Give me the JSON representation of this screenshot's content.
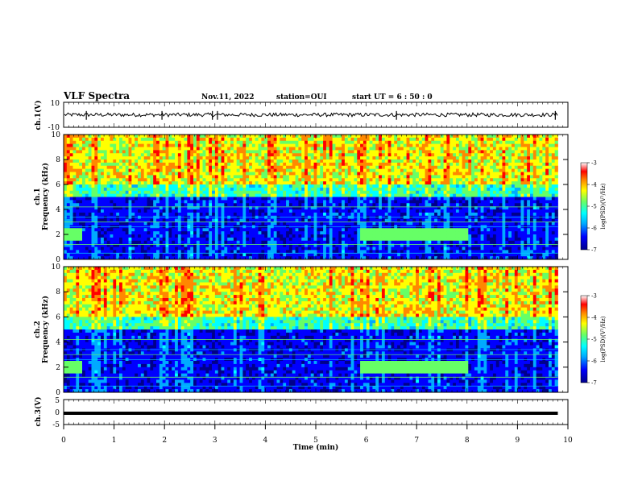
{
  "header": {
    "title": "VLF Spectra",
    "date": "Nov.11, 2022",
    "station": "station=OUI",
    "start": "start UT =  6 : 50 : 0"
  },
  "colors": {
    "spectrum_scale": [
      "#00008a",
      "#0000ff",
      "#00aaff",
      "#00ffff",
      "#66ff66",
      "#ffff00",
      "#ff8800",
      "#ff0000",
      "#ffffff"
    ],
    "waveform": "#000000"
  },
  "chart_data": [
    {
      "type": "line",
      "name_key": "ch1-waveform",
      "ylabel": "ch.1(V)",
      "ylim": [
        -10,
        10
      ],
      "yticks": [
        "10",
        "-10"
      ],
      "xlim": [
        0,
        10
      ],
      "baseline": 0,
      "amplitude_typical": 1.5,
      "spikes_min": [
        0.45,
        1.95,
        2.95,
        3.05,
        6.6,
        9.75
      ]
    },
    {
      "type": "heatmap",
      "name_key": "ch1-spectrogram",
      "ylabel": "Frequency (kHz)",
      "channel_label": "ch.1",
      "ylim": [
        0,
        10
      ],
      "yticks": [
        "0",
        "2",
        "4",
        "6",
        "8",
        "10"
      ],
      "xlim": [
        0,
        9.8
      ],
      "colorbar": {
        "label": "log(PSD)(V²/Hz)",
        "range": [
          -7,
          -3
        ],
        "ticks": [
          "-3",
          "-4",
          "-5",
          "-6",
          "-7"
        ]
      },
      "whistler_band": {
        "start_min": 5.9,
        "end_min": 8.0,
        "freq_khz": 2.0
      },
      "sferic_band_khz": [
        6,
        10
      ]
    },
    {
      "type": "heatmap",
      "name_key": "ch2-spectrogram",
      "ylabel": "Frequency (kHz)",
      "channel_label": "ch.2",
      "ylim": [
        0,
        10
      ],
      "yticks": [
        "0",
        "2",
        "4",
        "6",
        "8",
        "10"
      ],
      "xlim": [
        0,
        9.8
      ],
      "colorbar": {
        "label": "log(PSD)(V²/Hz)",
        "range": [
          -7,
          -3
        ],
        "ticks": [
          "-3",
          "-4",
          "-5",
          "-6",
          "-7"
        ]
      },
      "whistler_band": {
        "start_min": 5.9,
        "end_min": 8.0,
        "freq_khz": 2.0
      },
      "sferic_band_khz": [
        6,
        10
      ]
    },
    {
      "type": "line",
      "name_key": "ch3-waveform",
      "ylabel": "ch.3(V)",
      "ylim": [
        -5,
        5
      ],
      "yticks": [
        "5",
        "0",
        "-5"
      ],
      "xlim": [
        0,
        9.8
      ],
      "constant_value": -0.5
    }
  ],
  "xaxis": {
    "label": "Time (min)",
    "ticks": [
      "0",
      "1",
      "2",
      "3",
      "4",
      "5",
      "6",
      "7",
      "8",
      "9",
      "10"
    ],
    "range": [
      0,
      10
    ]
  }
}
